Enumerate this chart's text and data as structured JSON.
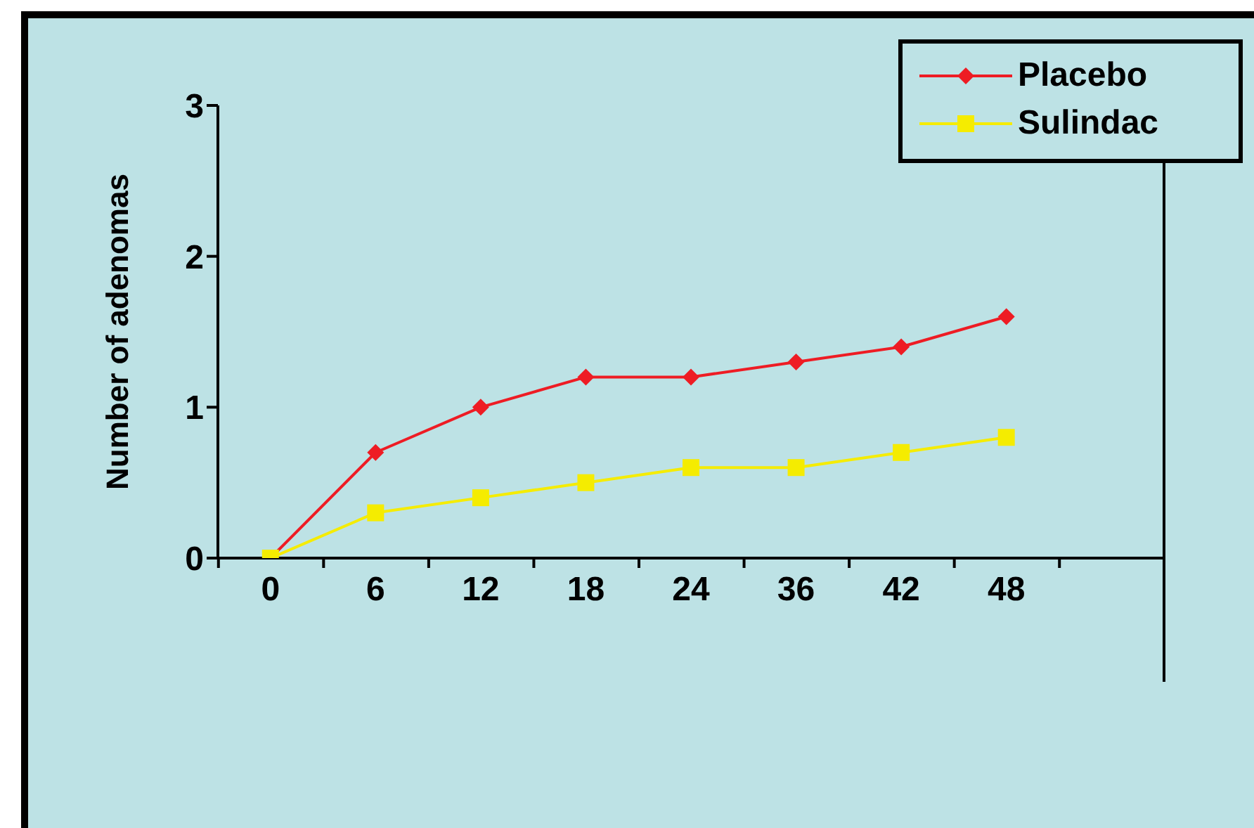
{
  "chart_data": {
    "type": "line",
    "ylabel": "Number of adenomas",
    "categories": [
      "0",
      "6",
      "12",
      "18",
      "24",
      "36",
      "42",
      "48",
      null
    ],
    "series": [
      {
        "name": "Placebo",
        "color": "#ee1c24",
        "marker": "diamond",
        "values": [
          0,
          0.7,
          1.0,
          1.2,
          1.2,
          1.3,
          1.4,
          1.6,
          null
        ]
      },
      {
        "name": "Sulindac",
        "color": "#f5ec00",
        "marker": "square",
        "values": [
          0,
          0.3,
          0.4,
          0.5,
          0.6,
          0.6,
          0.7,
          0.8,
          null
        ]
      }
    ],
    "ylim": [
      0,
      3
    ],
    "yticks": [
      0,
      1,
      2,
      3
    ],
    "grid": false,
    "legend": "top right"
  }
}
